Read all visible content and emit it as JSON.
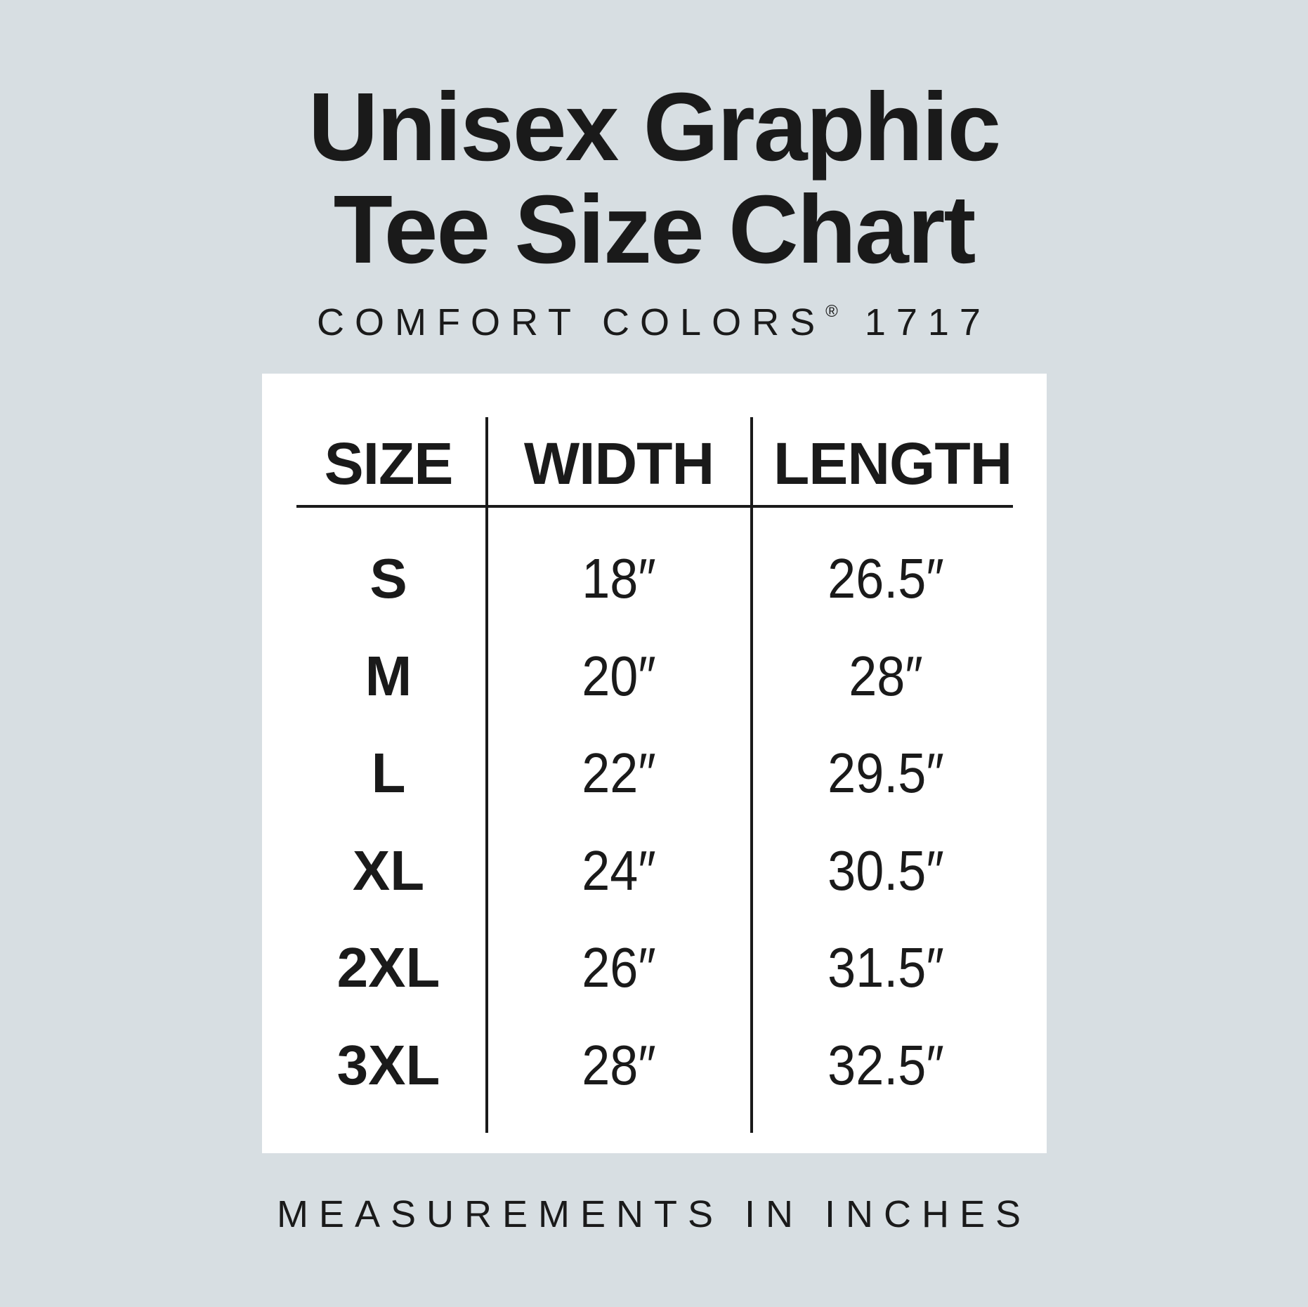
{
  "title_line1": "Unisex Graphic",
  "title_line2": "Tee Size Chart",
  "subtitle": "COMFORT COLORS",
  "subtitle_mark": "®",
  "subtitle_model": "1717",
  "table": {
    "headers": [
      "SIZE",
      "WIDTH",
      "LENGTH"
    ],
    "rows": [
      {
        "size": "S",
        "width": "18″",
        "length": "26.5″"
      },
      {
        "size": "M",
        "width": "20″",
        "length": "28″"
      },
      {
        "size": "L",
        "width": "22″",
        "length": "29.5″"
      },
      {
        "size": "XL",
        "width": "24″",
        "length": "30.5″"
      },
      {
        "size": "2XL",
        "width": "26″",
        "length": "31.5″"
      },
      {
        "size": "3XL",
        "width": "28″",
        "length": "32.5″"
      }
    ]
  },
  "footer": "MEASUREMENTS IN INCHES",
  "colors": {
    "background": "#d7dee2",
    "panel": "#ffffff",
    "text": "#1a1a1a"
  }
}
